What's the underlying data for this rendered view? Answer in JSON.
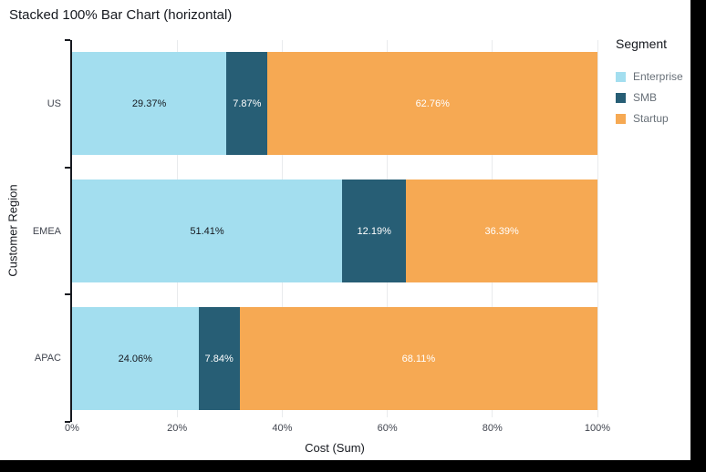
{
  "title": "Stacked 100% Bar Chart (horizontal)",
  "legend": {
    "title": "Segment",
    "items": [
      {
        "label": "Enterprise",
        "color": "#a3deef"
      },
      {
        "label": "SMB",
        "color": "#275e75"
      },
      {
        "label": "Startup",
        "color": "#f6a953"
      }
    ]
  },
  "axes": {
    "x_title": "Cost (Sum)",
    "y_title": "Customer Region"
  },
  "chart_data": {
    "type": "bar",
    "orientation": "horizontal",
    "stacked": "100%",
    "title": "Stacked 100% Bar Chart (horizontal)",
    "categories": [
      "US",
      "EMEA",
      "APAC"
    ],
    "series": [
      {
        "name": "Enterprise",
        "color": "#a3deef",
        "label_color": "#16191f",
        "values": [
          29.37,
          51.41,
          24.06
        ],
        "labels": [
          "29.37%",
          "51.41%",
          "24.06%"
        ]
      },
      {
        "name": "SMB",
        "color": "#275e75",
        "label_color": "#ffffff",
        "values": [
          7.87,
          12.19,
          7.84
        ],
        "labels": [
          "7.87%",
          "12.19%",
          "7.84%"
        ]
      },
      {
        "name": "Startup",
        "color": "#f6a953",
        "label_color": "#ffffff",
        "values": [
          62.76,
          36.39,
          68.11
        ],
        "labels": [
          "62.76%",
          "36.39%",
          "68.11%"
        ]
      }
    ],
    "xlabel": "Cost (Sum)",
    "ylabel": "Customer Region",
    "xlim": [
      0,
      100
    ],
    "x_tick_labels": [
      "0%",
      "20%",
      "40%",
      "60%",
      "80%",
      "100%"
    ],
    "x_tick_values": [
      0,
      20,
      40,
      60,
      80,
      100
    ],
    "grid": "vertical",
    "legend_position": "right"
  }
}
